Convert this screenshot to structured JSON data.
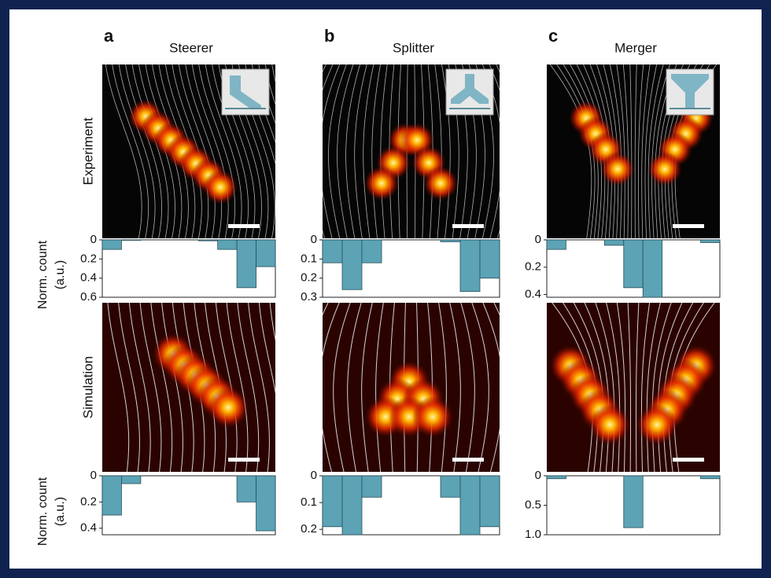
{
  "panels": [
    {
      "letter": "a",
      "title": "Steerer"
    },
    {
      "letter": "b",
      "title": "Splitter"
    },
    {
      "letter": "c",
      "title": "Merger"
    }
  ],
  "rows": [
    {
      "label": "Experiment",
      "y_label": [
        "Norm. count",
        "(a.u.)"
      ]
    },
    {
      "label": "Simulation",
      "y_label": [
        "Norm. count",
        "(a.u.)"
      ]
    }
  ],
  "chart_data": [
    {
      "type": "bar",
      "categories": [
        null,
        null,
        null,
        null,
        null,
        null,
        null,
        null,
        null
      ],
      "values": [
        0.1,
        0.005,
        0,
        0,
        0,
        0.01,
        0.1,
        0.5,
        0.28
      ],
      "ylim": [
        0,
        0.6
      ],
      "yticks": [
        0,
        0.2,
        0.4,
        0.6
      ],
      "y_inverted": true,
      "color": "#5ba3b5"
    },
    {
      "type": "bar",
      "categories": [
        null,
        null,
        null,
        null,
        null,
        null,
        null,
        null,
        null
      ],
      "values": [
        0.12,
        0.26,
        0.12,
        0,
        0,
        0,
        0.01,
        0.27,
        0.2
      ],
      "ylim": [
        0,
        0.3
      ],
      "yticks": [
        0,
        0.1,
        0.2,
        0.3
      ],
      "y_inverted": true,
      "color": "#5ba3b5"
    },
    {
      "type": "bar",
      "categories": [
        null,
        null,
        null,
        null,
        null,
        null,
        null,
        null,
        null
      ],
      "values": [
        0.07,
        0,
        0,
        0.04,
        0.35,
        0.42,
        0,
        0,
        0.02
      ],
      "ylim": [
        0,
        0.42
      ],
      "yticks": [
        0,
        0.2,
        0.4
      ],
      "y_inverted": true,
      "color": "#5ba3b5"
    },
    {
      "type": "bar",
      "categories": [
        null,
        null,
        null,
        null,
        null,
        null,
        null,
        null,
        null
      ],
      "values": [
        0.3,
        0.06,
        0,
        0,
        0,
        0,
        0,
        0.2,
        0.42
      ],
      "ylim": [
        0,
        0.45
      ],
      "yticks": [
        0,
        0.2,
        0.4
      ],
      "y_inverted": true,
      "color": "#5ba3b5"
    },
    {
      "type": "bar",
      "categories": [
        null,
        null,
        null,
        null,
        null,
        null,
        null,
        null,
        null
      ],
      "values": [
        0.19,
        0.22,
        0.08,
        0,
        0,
        0,
        0.08,
        0.22,
        0.19
      ],
      "ylim": [
        0,
        0.22
      ],
      "yticks": [
        0,
        0.1,
        0.2
      ],
      "y_inverted": true,
      "color": "#5ba3b5"
    },
    {
      "type": "bar",
      "categories": [
        null,
        null,
        null,
        null,
        null,
        null,
        null,
        null,
        null
      ],
      "values": [
        0.05,
        0,
        0,
        0,
        0.88,
        0,
        0,
        0,
        0.05
      ],
      "ylim": [
        0,
        1
      ],
      "yticks": [
        0,
        0.5,
        {
          "value": 1,
          "label": "1.0"
        }
      ],
      "y_inverted": true,
      "color": "#5ba3b5"
    }
  ]
}
